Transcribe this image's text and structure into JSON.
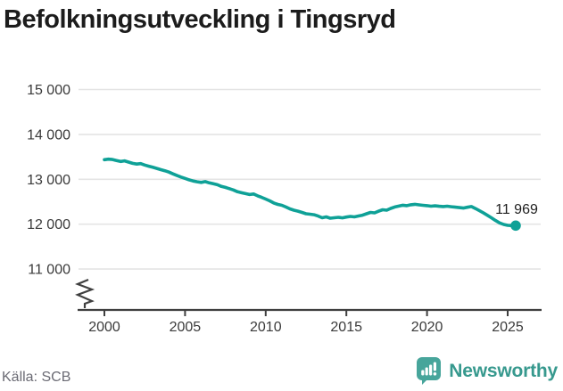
{
  "title": "Befolkningsutveckling i Tingsryd",
  "footer": {
    "source": "Källa: SCB",
    "brand": {
      "name": "Newsworthy",
      "icon": "bar-chart-speech-bubble-icon"
    }
  },
  "colors": {
    "line": "#0fa197",
    "marker": "#0fa197",
    "grid": "#e4e4e4",
    "axis": "#3f3f3f",
    "tick_text": "#3a3a3a",
    "title_text": "#1c1c1c",
    "end_label_text": "#1e1e1e",
    "muted_text": "#6b6b74",
    "brand_icon": "#47a59b",
    "brand_text": "#37998e"
  },
  "chart_data": {
    "type": "line",
    "title": "Befolkningsutveckling i Tingsryd",
    "series_name": "Befolkning",
    "xlabel": "",
    "ylabel": "",
    "grid": "horizontal",
    "legend": "none",
    "y_axis_break": true,
    "ylim_display": [
      11000,
      15000
    ],
    "xlim": [
      2000,
      2026
    ],
    "yticks": [
      {
        "value": 15000,
        "label": "15 000"
      },
      {
        "value": 14000,
        "label": "14 000"
      },
      {
        "value": 13000,
        "label": "13 000"
      },
      {
        "value": 12000,
        "label": "12 000"
      },
      {
        "value": 11000,
        "label": "11 000"
      }
    ],
    "xticks": [
      2000,
      2005,
      2010,
      2015,
      2020,
      2025
    ],
    "end_label": "11 969",
    "last_point": {
      "x": 2025.5,
      "y": 11969
    },
    "x": [
      2000,
      2000.25,
      2000.5,
      2000.75,
      2001,
      2001.25,
      2001.5,
      2001.75,
      2002,
      2002.25,
      2002.5,
      2002.75,
      2003,
      2003.25,
      2003.5,
      2003.75,
      2004,
      2004.25,
      2004.5,
      2004.75,
      2005,
      2005.25,
      2005.5,
      2005.75,
      2006,
      2006.25,
      2006.5,
      2006.75,
      2007,
      2007.25,
      2007.5,
      2007.75,
      2008,
      2008.25,
      2008.5,
      2008.75,
      2009,
      2009.25,
      2009.5,
      2009.75,
      2010,
      2010.25,
      2010.5,
      2010.75,
      2011,
      2011.25,
      2011.5,
      2011.75,
      2012,
      2012.25,
      2012.5,
      2012.75,
      2013,
      2013.25,
      2013.5,
      2013.75,
      2014,
      2014.25,
      2014.5,
      2014.75,
      2015,
      2015.25,
      2015.5,
      2015.75,
      2016,
      2016.25,
      2016.5,
      2016.75,
      2017,
      2017.25,
      2017.5,
      2017.75,
      2018,
      2018.25,
      2018.5,
      2018.75,
      2019,
      2019.25,
      2019.5,
      2019.75,
      2020,
      2020.25,
      2020.5,
      2020.75,
      2021,
      2021.25,
      2021.5,
      2021.75,
      2022,
      2022.25,
      2022.5,
      2022.75,
      2023,
      2023.25,
      2023.5,
      2023.75,
      2024,
      2024.25,
      2024.5,
      2024.75,
      2025,
      2025.25,
      2025.5
    ],
    "values": [
      13437,
      13448,
      13440,
      13418,
      13396,
      13410,
      13382,
      13356,
      13340,
      13350,
      13318,
      13292,
      13268,
      13242,
      13214,
      13190,
      13160,
      13122,
      13084,
      13050,
      13020,
      12988,
      12962,
      12944,
      12930,
      12948,
      12920,
      12900,
      12878,
      12842,
      12820,
      12792,
      12762,
      12722,
      12700,
      12680,
      12660,
      12672,
      12630,
      12598,
      12560,
      12520,
      12472,
      12440,
      12420,
      12382,
      12342,
      12312,
      12290,
      12262,
      12232,
      12222,
      12210,
      12180,
      12142,
      12162,
      12132,
      12142,
      12152,
      12140,
      12158,
      12172,
      12162,
      12182,
      12200,
      12232,
      12262,
      12252,
      12290,
      12322,
      12312,
      12352,
      12382,
      12402,
      12422,
      12412,
      12432,
      12442,
      12430,
      12420,
      12412,
      12400,
      12408,
      12398,
      12392,
      12400,
      12388,
      12378,
      12370,
      12360,
      12376,
      12392,
      12350,
      12300,
      12250,
      12196,
      12140,
      12082,
      12028,
      11995,
      11975,
      11968,
      11969
    ]
  }
}
